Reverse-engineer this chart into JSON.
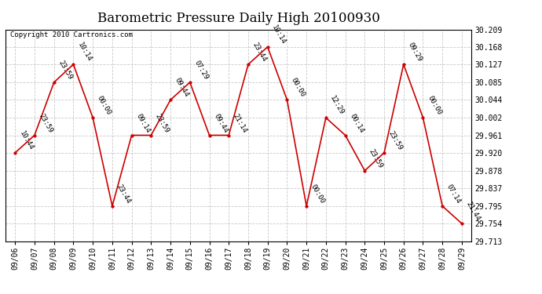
{
  "title": "Barometric Pressure Daily High 20100930",
  "copyright": "Copyright 2010 Cartronics.com",
  "x_labels": [
    "09/06",
    "09/07",
    "09/08",
    "09/09",
    "09/10",
    "09/11",
    "09/12",
    "09/13",
    "09/14",
    "09/15",
    "09/16",
    "09/17",
    "09/18",
    "09/19",
    "09/20",
    "09/21",
    "09/22",
    "09/23",
    "09/24",
    "09/25",
    "09/26",
    "09/27",
    "09/28",
    "09/29"
  ],
  "y_ticks": [
    29.713,
    29.754,
    29.795,
    29.837,
    29.878,
    29.92,
    29.961,
    30.002,
    30.044,
    30.085,
    30.127,
    30.168,
    30.209
  ],
  "data_points": [
    {
      "day": "09/06",
      "time": "10:44",
      "value": 29.92
    },
    {
      "day": "09/07",
      "time": "23:59",
      "value": 29.961
    },
    {
      "day": "09/08",
      "time": "23:59",
      "value": 30.085
    },
    {
      "day": "09/09",
      "time": "10:14",
      "value": 30.127
    },
    {
      "day": "09/10",
      "time": "00:00",
      "value": 30.002
    },
    {
      "day": "09/11",
      "time": "23:44",
      "value": 29.795
    },
    {
      "day": "09/12",
      "time": "09:14",
      "value": 29.961
    },
    {
      "day": "09/13",
      "time": "23:59",
      "value": 29.961
    },
    {
      "day": "09/14",
      "time": "09:44",
      "value": 30.044
    },
    {
      "day": "09/15",
      "time": "07:29",
      "value": 30.085
    },
    {
      "day": "09/16",
      "time": "09:44",
      "value": 29.961
    },
    {
      "day": "09/17",
      "time": "21:14",
      "value": 29.961
    },
    {
      "day": "09/18",
      "time": "23:44",
      "value": 30.127
    },
    {
      "day": "09/19",
      "time": "10:14",
      "value": 30.168
    },
    {
      "day": "09/20",
      "time": "00:00",
      "value": 30.044
    },
    {
      "day": "09/21",
      "time": "00:00",
      "value": 29.795
    },
    {
      "day": "09/22",
      "time": "12:29",
      "value": 30.002
    },
    {
      "day": "09/23",
      "time": "00:14",
      "value": 29.961
    },
    {
      "day": "09/24",
      "time": "23:59",
      "value": 29.878
    },
    {
      "day": "09/25",
      "time": "23:59",
      "value": 29.92
    },
    {
      "day": "09/26",
      "time": "09:29",
      "value": 30.127
    },
    {
      "day": "09/27",
      "time": "00:00",
      "value": 30.002
    },
    {
      "day": "09/28",
      "time": "07:14",
      "value": 29.795
    },
    {
      "day": "09/29",
      "time": "21:44",
      "value": 29.754
    }
  ],
  "line_color": "#cc0000",
  "marker_color": "#cc0000",
  "background_color": "#ffffff",
  "grid_color": "#bbbbbb",
  "title_fontsize": 12,
  "label_fontsize": 7,
  "annotation_fontsize": 6.5
}
